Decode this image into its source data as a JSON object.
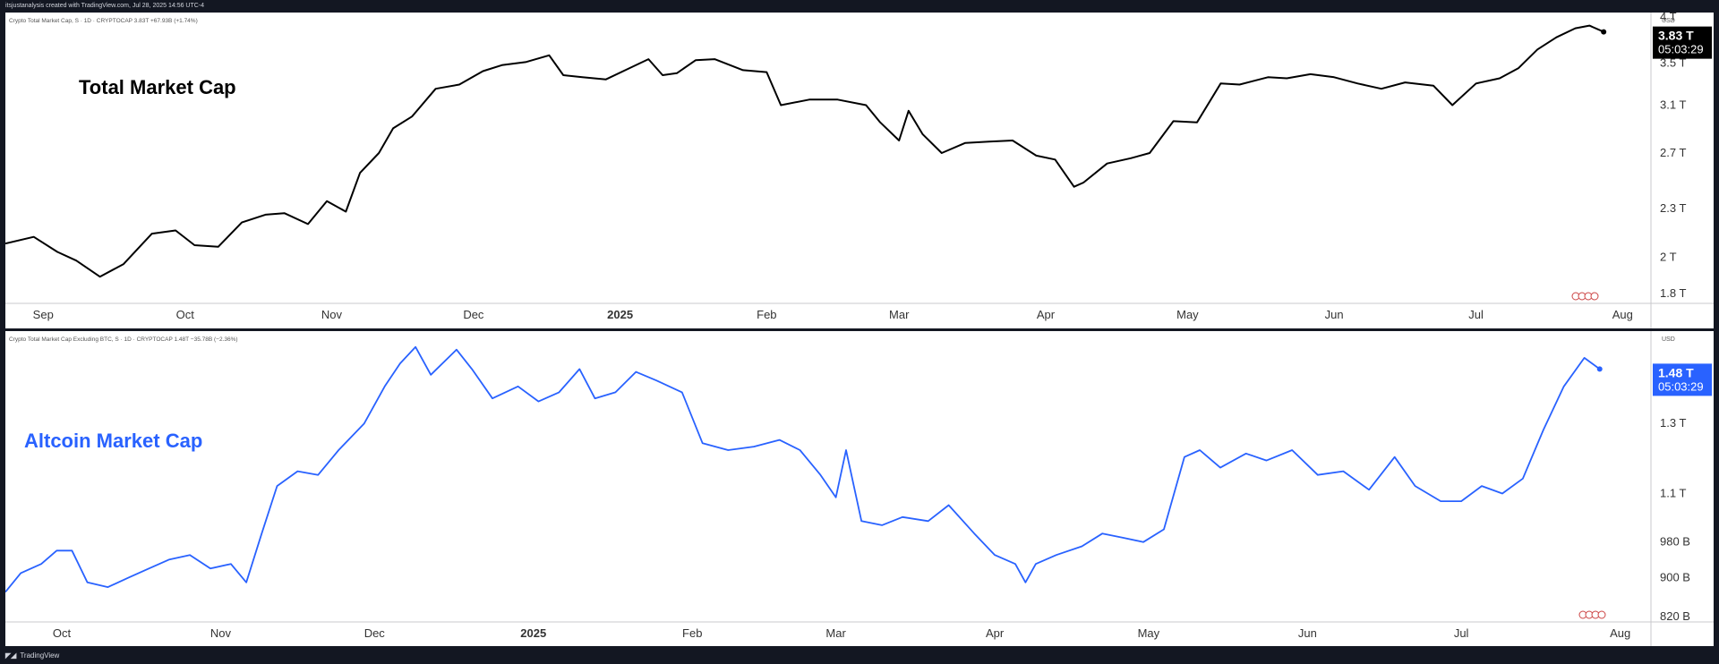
{
  "header": {
    "credit": "itsjustanalysis created with TradingView.com, Jul 28, 2025 14:56 UTC-4"
  },
  "footer": {
    "brand": "TradingView",
    "logo_icon": "tradingview-logo-icon"
  },
  "colors": {
    "top_line": "#000000",
    "bottom_line": "#2962ff",
    "bottom_title": "#2962ff",
    "price_tag_top": "#000000",
    "price_tag_bottom": "#2962ff"
  },
  "chart_data": [
    {
      "type": "line",
      "legend_text": "Crypto Total Market Cap, S · 1D · CRYPTOCAP  3.83T  +67.93B (+1.74%)",
      "title": "Total Market Cap",
      "currency": "USD",
      "y_scale": "log",
      "ylim": [
        1.75,
        4.05
      ],
      "xlim": [
        "2024-08-24",
        "2025-08-07"
      ],
      "x_ticks": [
        {
          "label": "Sep",
          "date": "2024-09-01"
        },
        {
          "label": "Oct",
          "date": "2024-10-01"
        },
        {
          "label": "Nov",
          "date": "2024-11-01"
        },
        {
          "label": "Dec",
          "date": "2024-12-01"
        },
        {
          "label": "2025",
          "date": "2025-01-01",
          "bold": true
        },
        {
          "label": "Feb",
          "date": "2025-02-01"
        },
        {
          "label": "Mar",
          "date": "2025-03-01"
        },
        {
          "label": "Apr",
          "date": "2025-04-01"
        },
        {
          "label": "May",
          "date": "2025-05-01"
        },
        {
          "label": "Jun",
          "date": "2025-06-01"
        },
        {
          "label": "Jul",
          "date": "2025-07-01"
        },
        {
          "label": "Aug",
          "date": "2025-08-01"
        }
      ],
      "y_ticks": [
        {
          "label": "4 T",
          "value": 4.0
        },
        {
          "label": "3.5 T",
          "value": 3.5
        },
        {
          "label": "3.1 T",
          "value": 3.1
        },
        {
          "label": "2.7 T",
          "value": 2.7
        },
        {
          "label": "2.3 T",
          "value": 2.3
        },
        {
          "label": "2 T",
          "value": 2.0
        },
        {
          "label": "1.8 T",
          "value": 1.8
        }
      ],
      "last_value_label": "3.83 T",
      "countdown": "05:03:29",
      "x": [
        "2024-08-24",
        "2024-08-30",
        "2024-09-04",
        "2024-09-08",
        "2024-09-13",
        "2024-09-18",
        "2024-09-24",
        "2024-09-29",
        "2024-10-03",
        "2024-10-08",
        "2024-10-13",
        "2024-10-18",
        "2024-10-22",
        "2024-10-27",
        "2024-10-31",
        "2024-11-04",
        "2024-11-07",
        "2024-11-11",
        "2024-11-14",
        "2024-11-18",
        "2024-11-23",
        "2024-11-28",
        "2024-12-03",
        "2024-12-07",
        "2024-12-12",
        "2024-12-17",
        "2024-12-20",
        "2024-12-24",
        "2024-12-29",
        "2025-01-03",
        "2025-01-07",
        "2025-01-10",
        "2025-01-13",
        "2025-01-17",
        "2025-01-21",
        "2025-01-27",
        "2025-02-01",
        "2025-02-04",
        "2025-02-10",
        "2025-02-16",
        "2025-02-22",
        "2025-02-25",
        "2025-03-01",
        "2025-03-03",
        "2025-03-06",
        "2025-03-10",
        "2025-03-15",
        "2025-03-20",
        "2025-03-25",
        "2025-03-30",
        "2025-04-03",
        "2025-04-07",
        "2025-04-09",
        "2025-04-14",
        "2025-04-19",
        "2025-04-23",
        "2025-04-28",
        "2025-05-03",
        "2025-05-08",
        "2025-05-12",
        "2025-05-18",
        "2025-05-22",
        "2025-05-27",
        "2025-06-01",
        "2025-06-06",
        "2025-06-11",
        "2025-06-16",
        "2025-06-22",
        "2025-06-26",
        "2025-07-01",
        "2025-07-06",
        "2025-07-10",
        "2025-07-14",
        "2025-07-18",
        "2025-07-22",
        "2025-07-25",
        "2025-07-28"
      ],
      "series": [
        {
          "values": [
            2.08,
            2.12,
            2.03,
            1.98,
            1.89,
            1.96,
            2.14,
            2.16,
            2.07,
            2.06,
            2.21,
            2.26,
            2.27,
            2.2,
            2.35,
            2.28,
            2.55,
            2.7,
            2.9,
            3.0,
            3.25,
            3.29,
            3.42,
            3.48,
            3.51,
            3.58,
            3.38,
            3.36,
            3.34,
            3.45,
            3.54,
            3.38,
            3.4,
            3.53,
            3.54,
            3.43,
            3.41,
            3.1,
            3.15,
            3.15,
            3.1,
            2.95,
            2.8,
            3.05,
            2.85,
            2.7,
            2.78,
            2.79,
            2.8,
            2.68,
            2.65,
            2.45,
            2.48,
            2.62,
            2.66,
            2.7,
            2.96,
            2.95,
            3.3,
            3.29,
            3.36,
            3.35,
            3.39,
            3.36,
            3.3,
            3.25,
            3.31,
            3.28,
            3.1,
            3.3,
            3.35,
            3.45,
            3.64,
            3.77,
            3.87,
            3.9,
            3.83
          ]
        }
      ]
    },
    {
      "type": "line",
      "legend_text": "Crypto Total Market Cap Excluding BTC, S · 1D · CRYPTOCAP  1.48T  −35.78B (−2.36%)",
      "title": "Altcoin Market Cap",
      "currency": "USD",
      "y_scale": "log",
      "ylim": [
        0.81,
        1.62
      ],
      "xlim": [
        "2024-09-20",
        "2025-08-07"
      ],
      "x_ticks": [
        {
          "label": "Oct",
          "date": "2024-10-01"
        },
        {
          "label": "Nov",
          "date": "2024-11-01"
        },
        {
          "label": "Dec",
          "date": "2024-12-01"
        },
        {
          "label": "2025",
          "date": "2025-01-01",
          "bold": true
        },
        {
          "label": "Feb",
          "date": "2025-02-01"
        },
        {
          "label": "Mar",
          "date": "2025-03-01"
        },
        {
          "label": "Apr",
          "date": "2025-04-01"
        },
        {
          "label": "May",
          "date": "2025-05-01"
        },
        {
          "label": "Jun",
          "date": "2025-06-01"
        },
        {
          "label": "Jul",
          "date": "2025-07-01"
        },
        {
          "label": "Aug",
          "date": "2025-08-01"
        }
      ],
      "y_ticks": [
        {
          "label": "1.3 T",
          "value": 1.3
        },
        {
          "label": "1.1 T",
          "value": 1.1
        },
        {
          "label": "980 B",
          "value": 0.98
        },
        {
          "label": "900 B",
          "value": 0.9
        },
        {
          "label": "820 B",
          "value": 0.82
        }
      ],
      "last_value_label": "1.48 T",
      "countdown": "05:03:29",
      "x": [
        "2024-09-20",
        "2024-09-23",
        "2024-09-27",
        "2024-09-30",
        "2024-10-03",
        "2024-10-06",
        "2024-10-10",
        "2024-10-14",
        "2024-10-18",
        "2024-10-22",
        "2024-10-26",
        "2024-10-30",
        "2024-11-03",
        "2024-11-06",
        "2024-11-09",
        "2024-11-12",
        "2024-11-16",
        "2024-11-20",
        "2024-11-24",
        "2024-11-29",
        "2024-12-03",
        "2024-12-06",
        "2024-12-09",
        "2024-12-12",
        "2024-12-17",
        "2024-12-20",
        "2024-12-24",
        "2024-12-29",
        "2025-01-02",
        "2025-01-06",
        "2025-01-10",
        "2025-01-13",
        "2025-01-17",
        "2025-01-21",
        "2025-01-25",
        "2025-01-30",
        "2025-02-03",
        "2025-02-08",
        "2025-02-13",
        "2025-02-18",
        "2025-02-22",
        "2025-02-26",
        "2025-03-01",
        "2025-03-03",
        "2025-03-06",
        "2025-03-10",
        "2025-03-14",
        "2025-03-19",
        "2025-03-23",
        "2025-03-28",
        "2025-04-01",
        "2025-04-05",
        "2025-04-07",
        "2025-04-09",
        "2025-04-13",
        "2025-04-18",
        "2025-04-22",
        "2025-04-26",
        "2025-04-30",
        "2025-05-04",
        "2025-05-08",
        "2025-05-11",
        "2025-05-15",
        "2025-05-20",
        "2025-05-24",
        "2025-05-29",
        "2025-06-03",
        "2025-06-08",
        "2025-06-13",
        "2025-06-18",
        "2025-06-22",
        "2025-06-27",
        "2025-07-01",
        "2025-07-05",
        "2025-07-09",
        "2025-07-13",
        "2025-07-17",
        "2025-07-21",
        "2025-07-25",
        "2025-07-28"
      ],
      "series": [
        {
          "values": [
            0.87,
            0.91,
            0.93,
            0.96,
            0.96,
            0.89,
            0.88,
            0.9,
            0.92,
            0.94,
            0.95,
            0.92,
            0.93,
            0.89,
            1.0,
            1.12,
            1.16,
            1.15,
            1.22,
            1.3,
            1.42,
            1.5,
            1.56,
            1.46,
            1.55,
            1.48,
            1.38,
            1.42,
            1.37,
            1.4,
            1.48,
            1.38,
            1.4,
            1.47,
            1.44,
            1.4,
            1.24,
            1.22,
            1.23,
            1.25,
            1.22,
            1.15,
            1.09,
            1.22,
            1.03,
            1.02,
            1.04,
            1.03,
            1.07,
            1.0,
            0.95,
            0.93,
            0.89,
            0.93,
            0.95,
            0.97,
            1.0,
            0.99,
            0.98,
            1.01,
            1.2,
            1.22,
            1.17,
            1.21,
            1.19,
            1.22,
            1.15,
            1.16,
            1.11,
            1.2,
            1.12,
            1.08,
            1.08,
            1.12,
            1.1,
            1.14,
            1.28,
            1.42,
            1.52,
            1.48
          ]
        }
      ]
    }
  ]
}
